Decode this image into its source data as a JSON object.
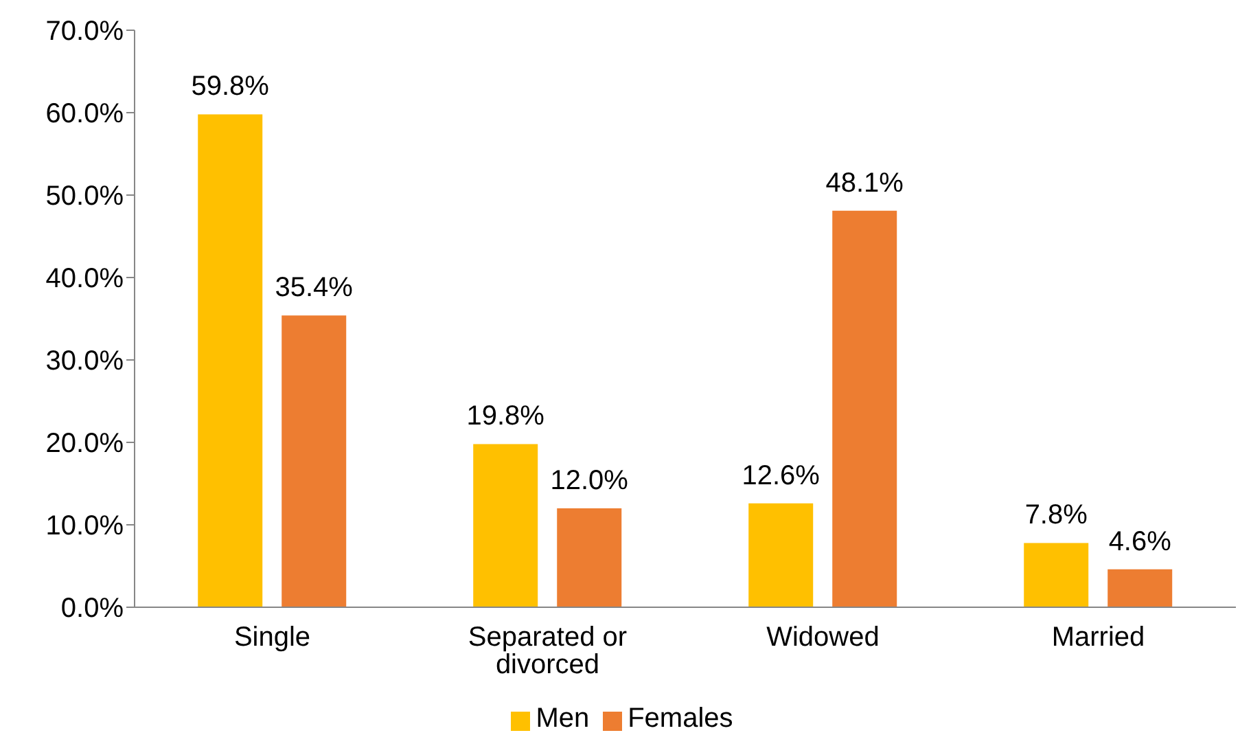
{
  "chart_data": {
    "type": "bar",
    "categories": [
      "Single",
      "Separated or divorced",
      "Widowed",
      "Married"
    ],
    "series": [
      {
        "name": "Men",
        "color": "#ffc000",
        "values": [
          59.8,
          19.8,
          12.6,
          7.8
        ],
        "value_labels": [
          "59.8%",
          "19.8%",
          "12.6%",
          "7.8%"
        ]
      },
      {
        "name": "Females",
        "color": "#ed7d31",
        "values": [
          35.4,
          12.0,
          48.1,
          4.6
        ],
        "value_labels": [
          "35.4%",
          "12.0%",
          "48.1%",
          "4.6%"
        ]
      }
    ],
    "ylim": [
      0,
      70
    ],
    "yticks": [
      {
        "value": 0,
        "label": "0.0%"
      },
      {
        "value": 10,
        "label": "10.0%"
      },
      {
        "value": 20,
        "label": "20.0%"
      },
      {
        "value": 30,
        "label": "30.0%"
      },
      {
        "value": 40,
        "label": "40.0%"
      },
      {
        "value": 50,
        "label": "50.0%"
      },
      {
        "value": 60,
        "label": "60.0%"
      },
      {
        "value": 70,
        "label": "70.0%"
      }
    ],
    "grid": false,
    "legend": "bottom"
  }
}
